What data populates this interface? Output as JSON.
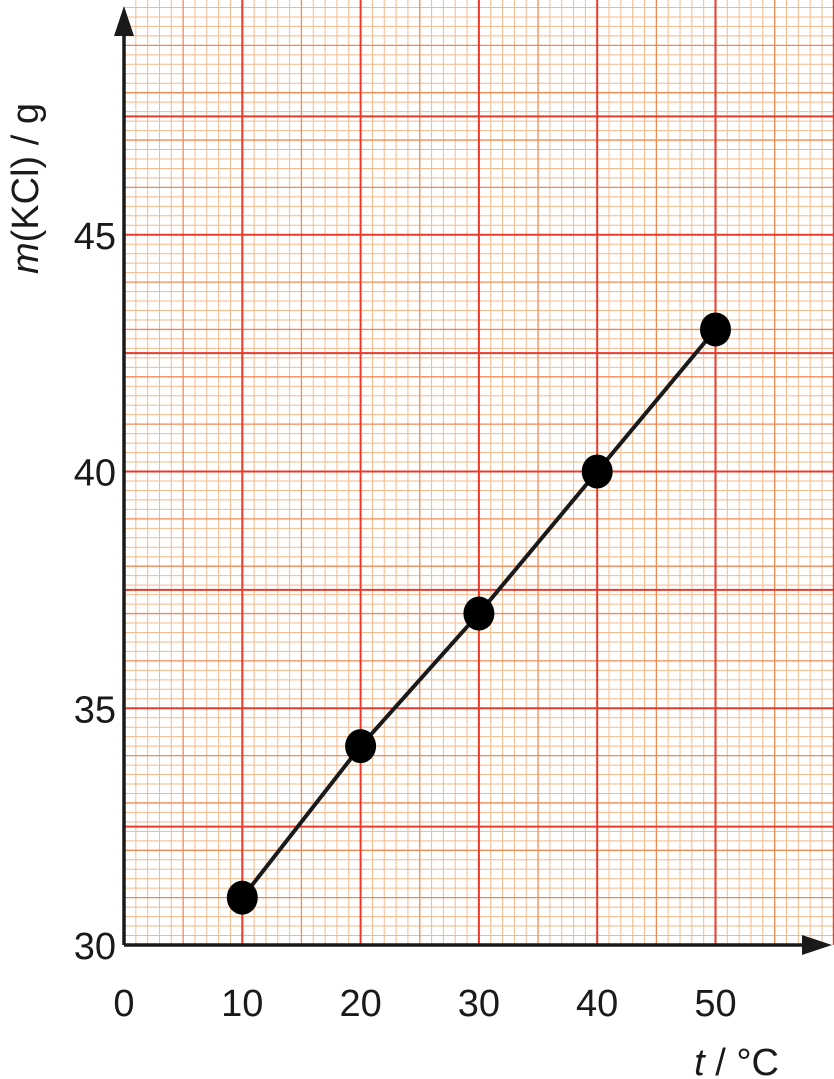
{
  "chart_data": {
    "type": "line",
    "title": "",
    "xlabel_var": "t",
    "xlabel_unit": " / °C",
    "ylabel_var": "m",
    "ylabel_unit": "(KCl) / g",
    "x": [
      10,
      20,
      30,
      40,
      50
    ],
    "series": [
      {
        "values": [
          31.0,
          34.2,
          37.0,
          40.0,
          43.0
        ]
      }
    ],
    "xlim": [
      0,
      60
    ],
    "ylim": [
      30,
      50
    ],
    "x_ticks": [
      "0",
      "10",
      "20",
      "30",
      "40",
      "50"
    ],
    "y_ticks": [
      "30",
      "35",
      "40",
      "45"
    ],
    "grid": true,
    "grid_style": "graph paper",
    "colors": {
      "grid_major": "#ea3a2a",
      "grid_mid": "#f08a55",
      "grid_minor": "#f6b98c",
      "line": "#1a1a1a",
      "marker": "#000000",
      "axis": "#1a1a1a"
    }
  }
}
